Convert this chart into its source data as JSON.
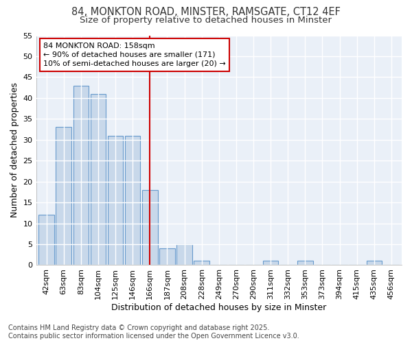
{
  "title_line1": "84, MONKTON ROAD, MINSTER, RAMSGATE, CT12 4EF",
  "title_line2": "Size of property relative to detached houses in Minster",
  "xlabel": "Distribution of detached houses by size in Minster",
  "ylabel": "Number of detached properties",
  "bar_labels": [
    "42sqm",
    "63sqm",
    "83sqm",
    "104sqm",
    "125sqm",
    "146sqm",
    "166sqm",
    "187sqm",
    "208sqm",
    "228sqm",
    "249sqm",
    "270sqm",
    "290sqm",
    "311sqm",
    "332sqm",
    "353sqm",
    "373sqm",
    "394sqm",
    "415sqm",
    "435sqm",
    "456sqm"
  ],
  "bar_values": [
    12,
    33,
    43,
    41,
    31,
    31,
    18,
    4,
    5,
    1,
    0,
    0,
    0,
    1,
    0,
    1,
    0,
    0,
    0,
    1,
    0
  ],
  "bar_color": "#c8d8ea",
  "bar_edgecolor": "#6699cc",
  "red_line_index": 6,
  "annotation_title": "84 MONKTON ROAD: 158sqm",
  "annotation_line1": "← 90% of detached houses are smaller (171)",
  "annotation_line2": "10% of semi-detached houses are larger (20) →",
  "annotation_box_facecolor": "#ffffff",
  "annotation_box_edgecolor": "#cc0000",
  "footer_line1": "Contains HM Land Registry data © Crown copyright and database right 2025.",
  "footer_line2": "Contains public sector information licensed under the Open Government Licence v3.0.",
  "ylim": [
    0,
    55
  ],
  "yticks": [
    0,
    5,
    10,
    15,
    20,
    25,
    30,
    35,
    40,
    45,
    50,
    55
  ],
  "fig_background": "#ffffff",
  "plot_background": "#eaf0f8",
  "grid_color": "#ffffff",
  "title_fontsize": 10.5,
  "subtitle_fontsize": 9.5,
  "axis_label_fontsize": 9,
  "tick_fontsize": 8,
  "annotation_fontsize": 8,
  "footer_fontsize": 7
}
